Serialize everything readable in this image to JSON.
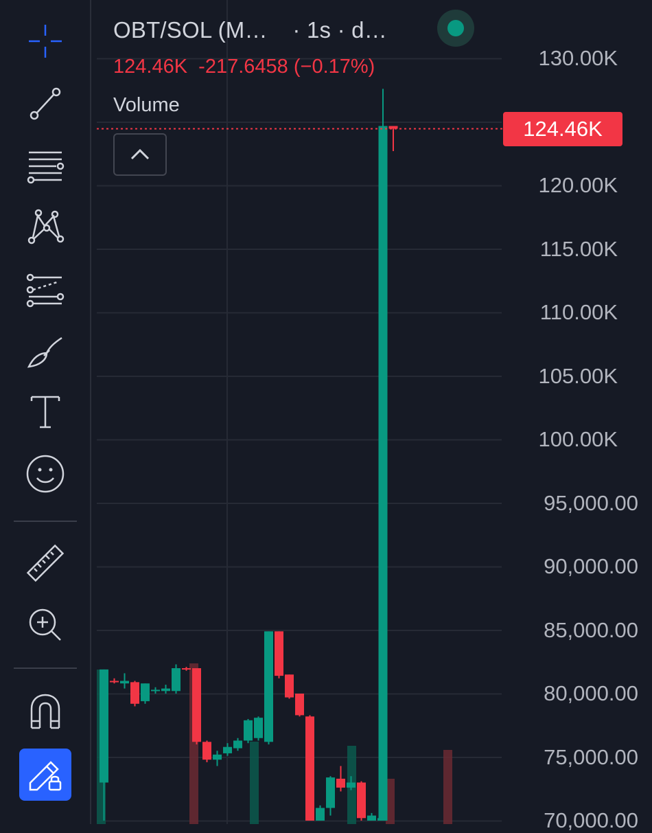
{
  "legend": {
    "symbol": "OBT/SOL (M…",
    "interval": "· 1s · d…",
    "last_price": "124.46K",
    "change": "-217.6458",
    "change_pct": "(−0.17%)",
    "volume_label": "Volume",
    "status": "live"
  },
  "price_scale": {
    "current_price_label": "124.46K",
    "labels": [
      "130.00K",
      "120.00K",
      "115.00K",
      "110.00K",
      "105.00K",
      "100.00K",
      "95,000.00",
      "90,000.00",
      "85,000.00",
      "80,000.00",
      "75,000.00",
      "70,000.00"
    ]
  },
  "toolbar": {
    "tools": [
      "crosshair-icon",
      "trend-line-icon",
      "horizontal-lines-icon",
      "pattern-icon",
      "projection-icon",
      "brush-icon",
      "text-icon",
      "emoji-icon",
      "ruler-icon",
      "zoom-in-icon",
      "magnet-icon",
      "lock-drawings-icon"
    ]
  },
  "colors": {
    "background": "#161a25",
    "up": "#089981",
    "down": "#f23645",
    "grid": "#262a35",
    "text": "#d1d4dc",
    "axis_text": "#b2b5be",
    "accent": "#2962ff"
  },
  "chart_data": {
    "type": "candlestick",
    "symbol": "OBT/SOL",
    "interval": "1s",
    "last_price": 124460,
    "change": -217.6458,
    "change_percent": -0.17,
    "ylim": [
      70000,
      130000
    ],
    "candles": [
      {
        "o": 73000,
        "h": 81900,
        "l": 70000,
        "c": 81900
      },
      {
        "o": 81000,
        "h": 81200,
        "l": 80800,
        "c": 80900
      },
      {
        "o": 80800,
        "h": 81600,
        "l": 80400,
        "c": 81000
      },
      {
        "o": 80900,
        "h": 81000,
        "l": 79000,
        "c": 79200
      },
      {
        "o": 79400,
        "h": 80800,
        "l": 79200,
        "c": 80800
      },
      {
        "o": 80200,
        "h": 80500,
        "l": 80000,
        "c": 80300
      },
      {
        "o": 80200,
        "h": 80700,
        "l": 80000,
        "c": 80400
      },
      {
        "o": 80200,
        "h": 82300,
        "l": 80000,
        "c": 82000
      },
      {
        "o": 82000,
        "h": 82100,
        "l": 81800,
        "c": 81900
      },
      {
        "o": 82000,
        "h": 82000,
        "l": 76000,
        "c": 76200
      },
      {
        "o": 76200,
        "h": 76300,
        "l": 74600,
        "c": 74800
      },
      {
        "o": 74800,
        "h": 75500,
        "l": 74300,
        "c": 75200
      },
      {
        "o": 75300,
        "h": 76100,
        "l": 75100,
        "c": 75800
      },
      {
        "o": 75700,
        "h": 76500,
        "l": 75500,
        "c": 76300
      },
      {
        "o": 76300,
        "h": 78000,
        "l": 76100,
        "c": 77900
      },
      {
        "o": 76500,
        "h": 78200,
        "l": 76300,
        "c": 78100
      },
      {
        "o": 76200,
        "h": 84900,
        "l": 76000,
        "c": 84900
      },
      {
        "o": 84900,
        "h": 84900,
        "l": 81200,
        "c": 81400
      },
      {
        "o": 81500,
        "h": 81500,
        "l": 79600,
        "c": 79700
      },
      {
        "o": 80000,
        "h": 80000,
        "l": 78200,
        "c": 78300
      },
      {
        "o": 78200,
        "h": 78300,
        "l": 70000,
        "c": 70000
      },
      {
        "o": 70000,
        "h": 71200,
        "l": 70000,
        "c": 71000
      },
      {
        "o": 71000,
        "h": 73500,
        "l": 70400,
        "c": 73400
      },
      {
        "o": 73300,
        "h": 74300,
        "l": 72300,
        "c": 72600
      },
      {
        "o": 72600,
        "h": 73500,
        "l": 72400,
        "c": 73000
      },
      {
        "o": 73000,
        "h": 73100,
        "l": 70000,
        "c": 70200
      },
      {
        "o": 70000,
        "h": 70600,
        "l": 70000,
        "c": 70400
      },
      {
        "o": 70000,
        "h": 70400,
        "l": 70000,
        "c": 70200
      },
      {
        "o": 70000,
        "h": 127600,
        "l": 70000,
        "c": 124677
      },
      {
        "o": 124677,
        "h": 124677,
        "l": 122700,
        "c": 124460
      }
    ],
    "volume": [
      {
        "v": 0.75,
        "up": true
      },
      {
        "v": 0.78,
        "up": false
      },
      {
        "v": 0.4,
        "up": true
      },
      {
        "v": 0.38,
        "up": true
      },
      {
        "v": 0.36,
        "up": false
      },
      {
        "v": 0.22,
        "up": false
      }
    ],
    "grid": true
  }
}
